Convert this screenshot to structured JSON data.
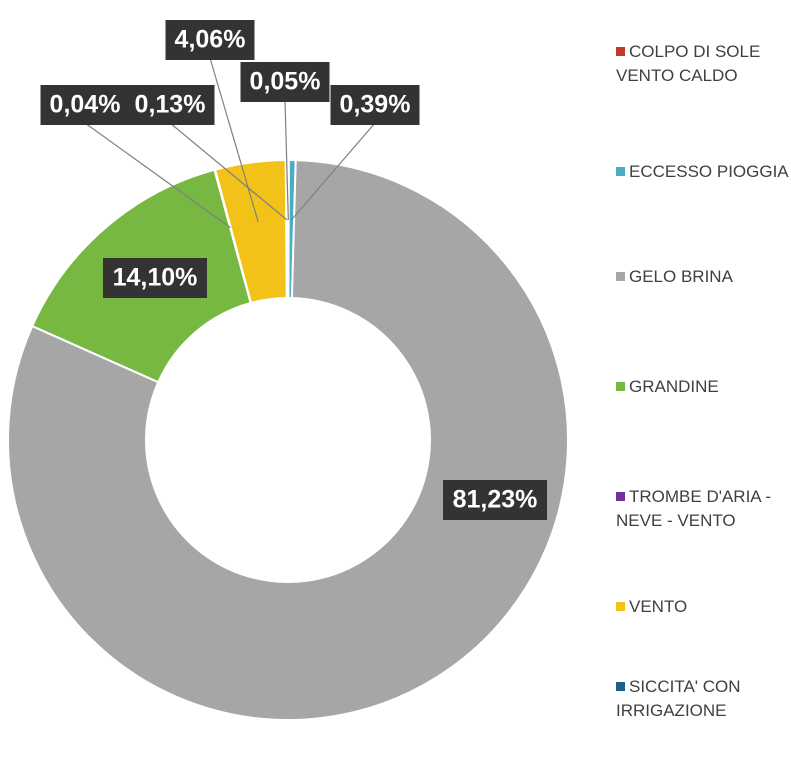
{
  "chart_data": {
    "type": "donut",
    "categories": [
      "COLPO DI SOLE VENTO CALDO",
      "ECCESSO PIOGGIA",
      "GELO BRINA",
      "GRANDINE",
      "TROMBE D'ARIA - NEVE - VENTO",
      "VENTO",
      "SICCITA' CON IRRIGAZIONE"
    ],
    "values": [
      0.05,
      0.39,
      81.23,
      14.1,
      0.04,
      4.06,
      0.13
    ],
    "value_labels": [
      "0,05%",
      "0,39%",
      "81,23%",
      "14,10%",
      "0,04%",
      "4,06%",
      "0,13%"
    ],
    "colors": [
      "#c0392b",
      "#4bacc6",
      "#a6a6a6",
      "#77b843",
      "#7030a0",
      "#f2c218",
      "#1f5f8b"
    ],
    "legend": "right"
  }
}
